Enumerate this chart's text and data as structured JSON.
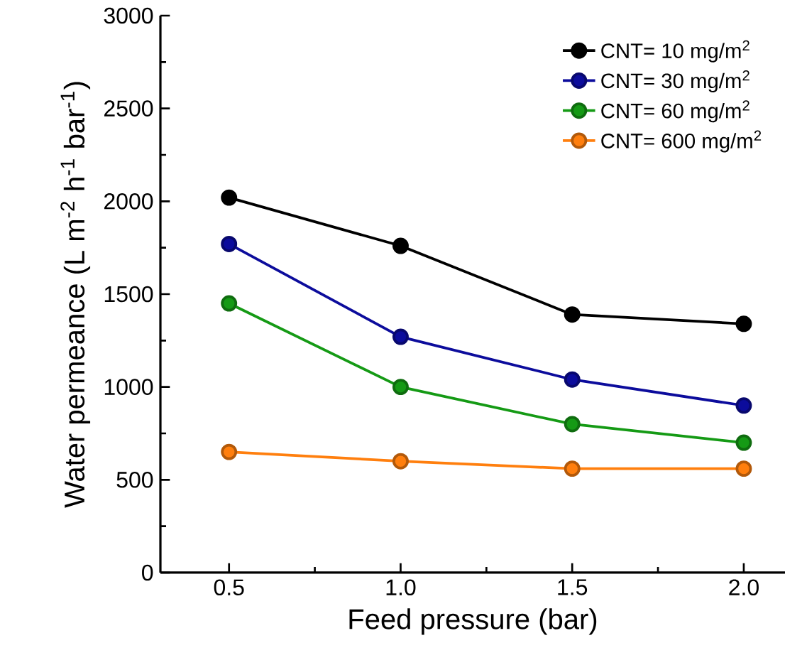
{
  "chart_data": {
    "type": "line",
    "xlabel": "Feed pressure (bar)",
    "ylabel": "Water permeance (L m$^{-2}$ h$^{-1}$ bar$^{-1}$)",
    "x": [
      0.5,
      1.0,
      1.5,
      2.0
    ],
    "xlim": [
      0.3,
      2.12
    ],
    "xticks": [
      {
        "value": 0.5,
        "label": "0.5"
      },
      {
        "value": 1.0,
        "label": "1.0"
      },
      {
        "value": 1.5,
        "label": "1.5"
      },
      {
        "value": 2.0,
        "label": "2.0"
      }
    ],
    "ylim": [
      0,
      3000
    ],
    "yticks": [
      0,
      500,
      1000,
      1500,
      2000,
      2500,
      3000
    ],
    "marker": "circle",
    "line_style": "solid",
    "legend": "top right",
    "series": [
      {
        "name": "CNT= 10 mg/m$^{2}$",
        "color": "#000000",
        "values": [
          2020,
          1760,
          1390,
          1340
        ]
      },
      {
        "name": "CNT= 30 mg/m$^{2}$",
        "color": "#0c0c9c",
        "values": [
          1770,
          1270,
          1040,
          900
        ]
      },
      {
        "name": "CNT= 60 mg/m$^{2}$",
        "color": "#159a15",
        "values": [
          1450,
          1000,
          800,
          700
        ]
      },
      {
        "name": "CNT= 600 mg/m$^{2}$",
        "color": "#ff7f0e",
        "values": [
          650,
          600,
          560,
          560
        ]
      }
    ]
  }
}
